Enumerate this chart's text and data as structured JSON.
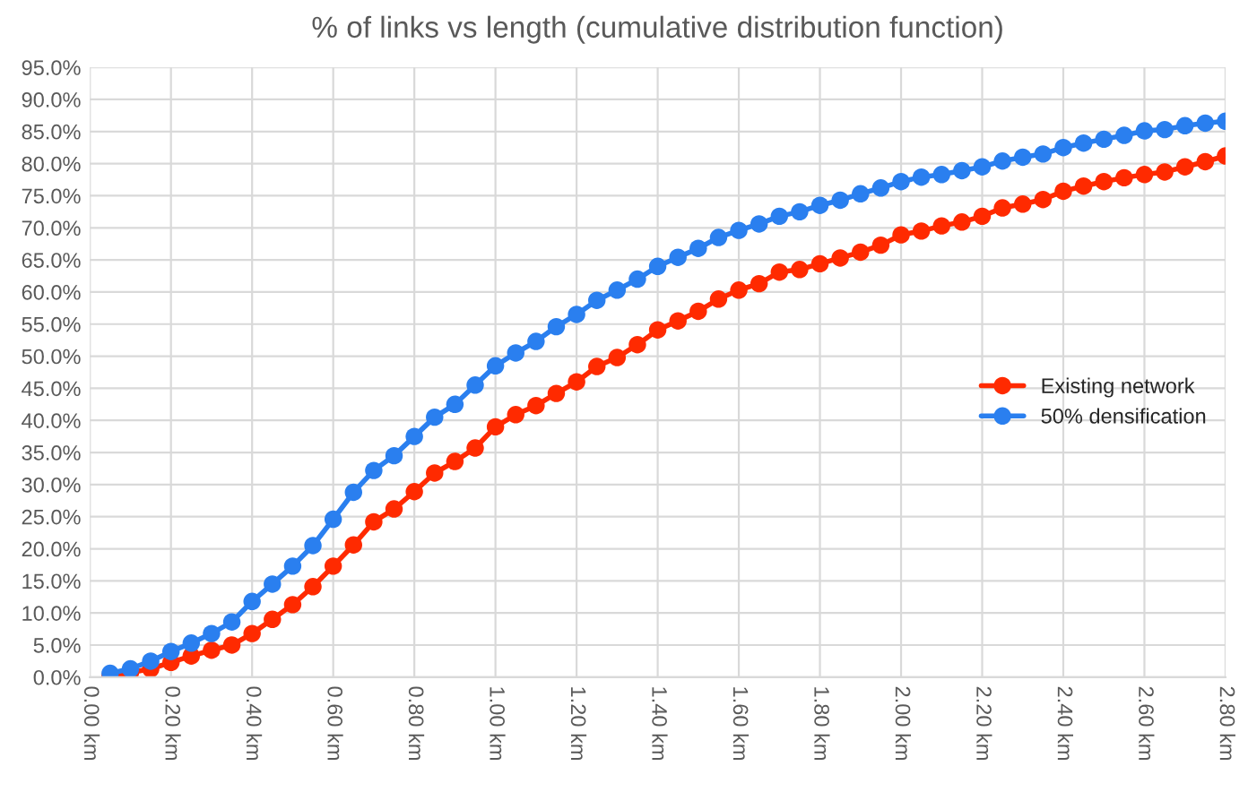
{
  "chart_data": {
    "type": "line",
    "title": "% of links vs length (cumulative distribution function)",
    "x": [
      0.05,
      0.1,
      0.15,
      0.2,
      0.25,
      0.3,
      0.35,
      0.4,
      0.45,
      0.5,
      0.55,
      0.6,
      0.65,
      0.7,
      0.75,
      0.8,
      0.85,
      0.9,
      0.95,
      1.0,
      1.05,
      1.1,
      1.15,
      1.2,
      1.25,
      1.3,
      1.35,
      1.4,
      1.45,
      1.5,
      1.55,
      1.6,
      1.65,
      1.7,
      1.75,
      1.8,
      1.85,
      1.9,
      1.95,
      2.0,
      2.05,
      2.1,
      2.15,
      2.2,
      2.25,
      2.3,
      2.35,
      2.4,
      2.45,
      2.5,
      2.55,
      2.6,
      2.65,
      2.7,
      2.75,
      2.8
    ],
    "series": [
      {
        "name": "Existing network",
        "color": "#ff2a00",
        "values": [
          0.2,
          0.7,
          1.3,
          2.3,
          3.3,
          4.2,
          5.0,
          6.8,
          9.0,
          11.3,
          14.1,
          17.3,
          20.6,
          24.2,
          26.2,
          28.9,
          31.8,
          33.6,
          35.7,
          39.0,
          40.9,
          42.3,
          44.2,
          46.0,
          48.4,
          49.8,
          51.8,
          54.1,
          55.5,
          57.0,
          58.9,
          60.3,
          61.3,
          63.1,
          63.5,
          64.4,
          65.3,
          66.2,
          67.3,
          68.9,
          69.5,
          70.3,
          70.9,
          71.8,
          73.1,
          73.7,
          74.4,
          75.7,
          76.5,
          77.2,
          77.8,
          78.3,
          78.7,
          79.5,
          80.3,
          81.2
        ]
      },
      {
        "name": "50% densification",
        "color": "#2a7fef",
        "values": [
          0.6,
          1.3,
          2.5,
          4.0,
          5.3,
          6.8,
          8.6,
          11.8,
          14.5,
          17.3,
          20.5,
          24.6,
          28.8,
          32.2,
          34.5,
          37.5,
          40.5,
          42.5,
          45.5,
          48.5,
          50.5,
          52.3,
          54.6,
          56.5,
          58.7,
          60.3,
          62.0,
          64.0,
          65.4,
          66.8,
          68.5,
          69.6,
          70.6,
          71.8,
          72.5,
          73.5,
          74.3,
          75.3,
          76.2,
          77.2,
          77.9,
          78.3,
          78.9,
          79.5,
          80.4,
          81.0,
          81.5,
          82.5,
          83.2,
          83.8,
          84.4,
          85.1,
          85.3,
          85.9,
          86.3,
          86.6
        ]
      }
    ],
    "xlim": [
      0,
      2.8
    ],
    "xticks": [
      {
        "value": 0,
        "label": "0.00 km"
      },
      {
        "value": 0.2,
        "label": "0.20 km"
      },
      {
        "value": 0.4,
        "label": "0.40 km"
      },
      {
        "value": 0.6,
        "label": "0.60 km"
      },
      {
        "value": 0.8,
        "label": "0.80 km"
      },
      {
        "value": 1.0,
        "label": "1.00 km"
      },
      {
        "value": 1.2,
        "label": "1.20 km"
      },
      {
        "value": 1.4,
        "label": "1.40 km"
      },
      {
        "value": 1.6,
        "label": "1.60 km"
      },
      {
        "value": 1.8,
        "label": "1.80 km"
      },
      {
        "value": 2.0,
        "label": "2.00 km"
      },
      {
        "value": 2.2,
        "label": "2.20 km"
      },
      {
        "value": 2.4,
        "label": "2.40 km"
      },
      {
        "value": 2.6,
        "label": "2.60 km"
      },
      {
        "value": 2.8,
        "label": "2.80 km"
      }
    ],
    "ylim": [
      0,
      95
    ],
    "yticks": [
      {
        "value": 0,
        "label": "0.0%"
      },
      {
        "value": 5,
        "label": "5.0%"
      },
      {
        "value": 10,
        "label": "10.0%"
      },
      {
        "value": 15,
        "label": "15.0%"
      },
      {
        "value": 20,
        "label": "20.0%"
      },
      {
        "value": 25,
        "label": "25.0%"
      },
      {
        "value": 30,
        "label": "30.0%"
      },
      {
        "value": 35,
        "label": "35.0%"
      },
      {
        "value": 40,
        "label": "40.0%"
      },
      {
        "value": 45,
        "label": "45.0%"
      },
      {
        "value": 50,
        "label": "50.0%"
      },
      {
        "value": 55,
        "label": "55.0%"
      },
      {
        "value": 60,
        "label": "60.0%"
      },
      {
        "value": 65,
        "label": "65.0%"
      },
      {
        "value": 70,
        "label": "70.0%"
      },
      {
        "value": 75,
        "label": "75.0%"
      },
      {
        "value": 80,
        "label": "80.0%"
      },
      {
        "value": 85,
        "label": "85.0%"
      },
      {
        "value": 90,
        "label": "90.0%"
      },
      {
        "value": 95,
        "label": "95.0%"
      }
    ],
    "grid": true,
    "legend": "right",
    "marker": "circle",
    "line_style": "solid"
  }
}
